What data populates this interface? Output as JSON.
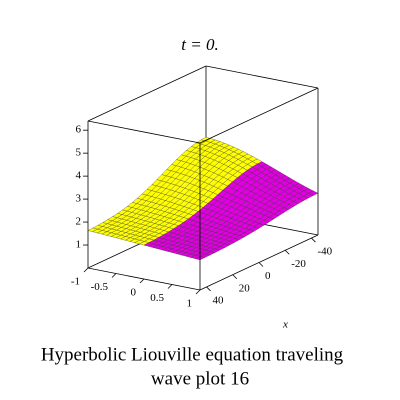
{
  "chart_data": {
    "type": "surface3d",
    "title": "t = 0.",
    "caption": [
      "Hyperbolic Liouville equation  traveling",
      "wave plot 16"
    ],
    "xlabel": "x",
    "xlim": [
      -45,
      45
    ],
    "xticks": [
      -40,
      -20,
      0,
      20,
      40
    ],
    "ylim": [
      -1,
      1
    ],
    "yticks": [
      -1,
      -0.5,
      0,
      0.5,
      1
    ],
    "zlim": [
      0,
      6.4
    ],
    "zticks": [
      1,
      2,
      3,
      4,
      5,
      6
    ],
    "colors": [
      "#ffff00",
      "#e000e0"
    ]
  }
}
